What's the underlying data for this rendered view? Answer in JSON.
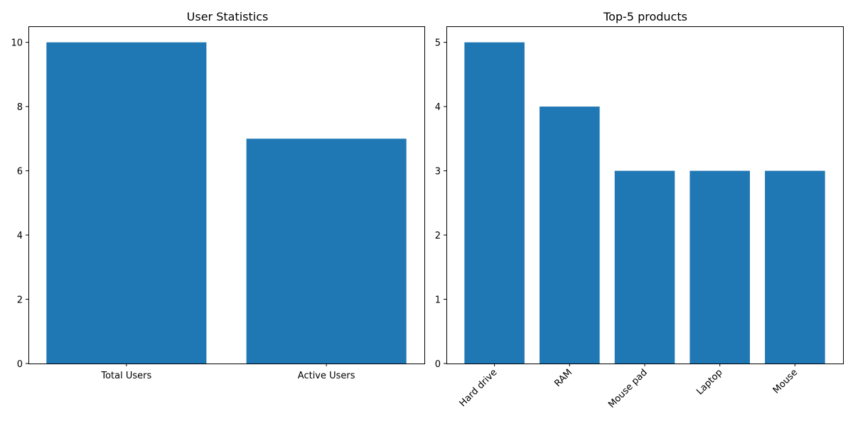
{
  "chart_data": [
    {
      "type": "bar",
      "title": "User Statistics",
      "xlabel": "",
      "ylabel": "",
      "categories": [
        "Total Users",
        "Active Users"
      ],
      "values": [
        10,
        7
      ],
      "yticks": [
        "0",
        "2",
        "4",
        "6",
        "8",
        "10"
      ],
      "ylim": [
        0,
        10.5
      ],
      "bar_color": "#1f77b4",
      "grid": false,
      "xtick_rotation": 0
    },
    {
      "type": "bar",
      "title": "Top-5 products",
      "xlabel": "",
      "ylabel": "",
      "categories": [
        "Hard drive",
        "RAM",
        "Mouse pad",
        "Laptop",
        "Mouse"
      ],
      "values": [
        5,
        4,
        3,
        3,
        3
      ],
      "yticks": [
        "0",
        "1",
        "2",
        "3",
        "4",
        "5"
      ],
      "ylim": [
        0,
        5.25
      ],
      "bar_color": "#1f77b4",
      "grid": false,
      "xtick_rotation": -45
    }
  ]
}
